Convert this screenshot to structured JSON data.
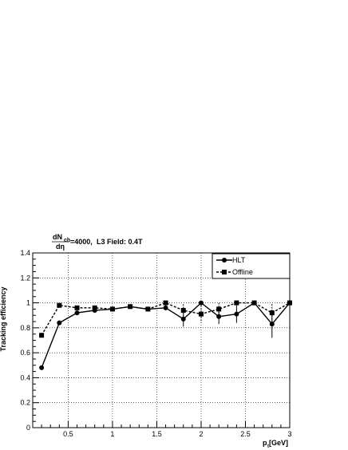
{
  "chart_data": {
    "type": "line",
    "annotation": {
      "numerator": "dN",
      "numerator_sub": "ch",
      "denominator": "dη",
      "value": "=4000,",
      "field": "L3 Field: 0.4T"
    },
    "xlabel": {
      "main": "p",
      "sub": "t",
      "unit": " [GeV]"
    },
    "ylabel": "Tracking efficiency",
    "xlim": [
      0.1,
      3.0
    ],
    "ylim": [
      0.0,
      1.4
    ],
    "x_tick_labels": [
      "0.5",
      "1",
      "1.5",
      "2",
      "2.5",
      "3"
    ],
    "y_tick_labels": [
      "0",
      "0.2",
      "0.4",
      "0.6",
      "0.8",
      "1",
      "1.2",
      "1.4"
    ],
    "grid": true,
    "legend_position": "top-right",
    "series": [
      {
        "name": "HLT",
        "marker": "circle",
        "line_style": "solid",
        "x": [
          0.2,
          0.4,
          0.6,
          0.8,
          1.0,
          1.2,
          1.4,
          1.6,
          1.8,
          2.0,
          2.2,
          2.4,
          2.6,
          2.8,
          3.0
        ],
        "y": [
          0.48,
          0.84,
          0.92,
          0.94,
          0.95,
          0.97,
          0.95,
          0.96,
          0.87,
          1.0,
          0.89,
          0.91,
          1.0,
          0.83,
          1.0
        ],
        "err": [
          0.01,
          0.01,
          0.015,
          0.01,
          0.01,
          0.01,
          0.015,
          0.02,
          0.06,
          0.0,
          0.06,
          0.07,
          0.0,
          0.11,
          0.0
        ]
      },
      {
        "name": "Offline",
        "marker": "square",
        "line_style": "dashed",
        "x": [
          0.2,
          0.4,
          0.6,
          0.8,
          1.0,
          1.2,
          1.4,
          1.6,
          1.8,
          2.0,
          2.2,
          2.4,
          2.6,
          2.8,
          3.0
        ],
        "y": [
          0.74,
          0.98,
          0.96,
          0.96,
          0.95,
          0.97,
          0.95,
          1.0,
          0.94,
          0.91,
          0.95,
          1.0,
          1.0,
          0.92,
          1.0
        ],
        "err": [
          0.01,
          0.01,
          0.01,
          0.01,
          0.01,
          0.01,
          0.01,
          0.0,
          0.05,
          0.07,
          0.05,
          0.0,
          0.0,
          0.07,
          0.0
        ]
      }
    ]
  }
}
